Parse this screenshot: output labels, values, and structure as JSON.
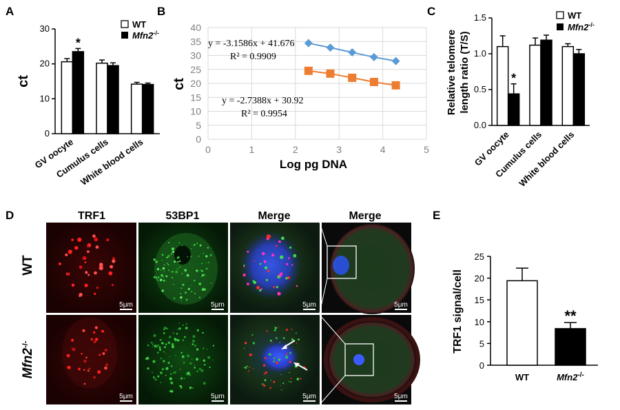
{
  "panels": {
    "A": "A",
    "B": "B",
    "C": "C",
    "D": "D",
    "E": "E"
  },
  "legend": {
    "wt": "WT",
    "ko": "Mfn2",
    "ko_sup": "-/-"
  },
  "chart_data": [
    {
      "id": "A",
      "type": "bar",
      "ylabel": "ct",
      "ylim": [
        0,
        30
      ],
      "yticks": [
        "0",
        "10",
        "20",
        "30"
      ],
      "categories": [
        "GV oocyte",
        "Cumulus cells",
        "White blood cells"
      ],
      "series": [
        {
          "name": "WT",
          "values": [
            20.6,
            20.2,
            14.2
          ],
          "errors": [
            0.9,
            0.9,
            0.5
          ]
        },
        {
          "name": "Mfn2-/-",
          "values": [
            23.5,
            19.5,
            14.1
          ],
          "errors": [
            0.9,
            0.8,
            0.4
          ]
        }
      ],
      "annotations": [
        {
          "category": "GV oocyte",
          "series": "Mfn2-/-",
          "text": "*"
        }
      ]
    },
    {
      "id": "B",
      "type": "line",
      "xlabel": "Log pg DNA",
      "ylabel": "ct",
      "xlim": [
        0,
        5
      ],
      "ylim": [
        0,
        40
      ],
      "xticks": [
        "0",
        "1",
        "2",
        "3",
        "4",
        "5"
      ],
      "yticks": [
        "0",
        "5",
        "10",
        "15",
        "20",
        "25",
        "30",
        "35",
        "40"
      ],
      "grid": true,
      "series": [
        {
          "color": "#5b9bd5",
          "marker": "diamond",
          "x": [
            2.3,
            2.8,
            3.3,
            3.8,
            4.3
          ],
          "y": [
            34.4,
            32.8,
            31.1,
            29.4,
            28.0
          ]
        },
        {
          "color": "#ed7d31",
          "marker": "square",
          "x": [
            2.3,
            2.8,
            3.3,
            3.8,
            4.3
          ],
          "y": [
            24.5,
            23.5,
            22.0,
            20.5,
            19.3
          ]
        }
      ],
      "equations": [
        {
          "eq": "y = -3.1586x + 41.676",
          "r2": "R² = 0.9909"
        },
        {
          "eq": "y = -2.7388x + 30.92",
          "r2": "R² = 0.9954"
        }
      ]
    },
    {
      "id": "C",
      "type": "bar",
      "ylabel": [
        "Relative telomere",
        "length ratio (T/S)"
      ],
      "ylim": [
        0,
        1.5
      ],
      "yticks": [
        "0.0",
        "0.5",
        "1.0",
        "1.5"
      ],
      "categories": [
        "GV oocyte",
        "Cumulus cells",
        "White blood cells"
      ],
      "series": [
        {
          "name": "WT",
          "values": [
            1.1,
            1.12,
            1.1
          ],
          "errors": [
            0.15,
            0.1,
            0.04
          ]
        },
        {
          "name": "Mfn2-/-",
          "values": [
            0.44,
            1.19,
            1.0
          ],
          "errors": [
            0.14,
            0.07,
            0.06
          ]
        }
      ],
      "annotations": [
        {
          "category": "GV oocyte",
          "series": "Mfn2-/-",
          "text": "*"
        }
      ]
    },
    {
      "id": "E",
      "type": "bar",
      "ylabel": "TRF1 signal/cell",
      "ylim": [
        0,
        25
      ],
      "yticks": [
        "0",
        "5",
        "10",
        "15",
        "20",
        "25"
      ],
      "categories": [
        "WT",
        "Mfn2-/-"
      ],
      "values": [
        19.4,
        8.4
      ],
      "errors": [
        2.9,
        1.4
      ],
      "annotations": [
        {
          "category": "Mfn2-/-",
          "text": "**"
        }
      ]
    }
  ],
  "micrographs": {
    "column_titles": [
      "TRF1",
      "53BP1",
      "Merge",
      "Merge"
    ],
    "row_labels": [
      "WT",
      "Mfn2",
      "-/-"
    ],
    "scale_bar": "5μm"
  }
}
